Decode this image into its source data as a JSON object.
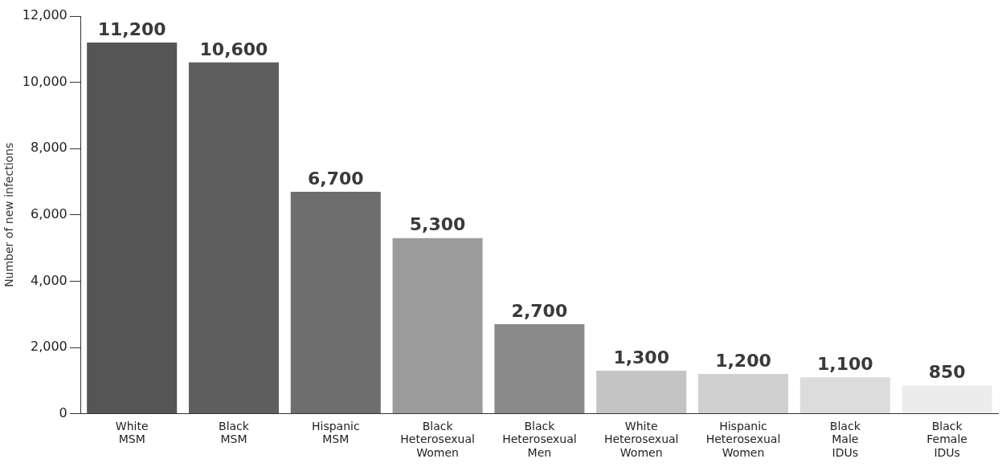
{
  "chart_data": {
    "type": "bar",
    "ylabel": "Number of new infections",
    "categories": [
      "White\nMSM",
      "Black\nMSM",
      "Hispanic\nMSM",
      "Black\nHeterosexual\nWomen",
      "Black\nHeterosexual\nMen",
      "White\nHeterosexual\nWomen",
      "Hispanic\nHeterosexual\nWomen",
      "Black\nMale\nIDUs",
      "Black\nFemale\nIDUs"
    ],
    "values": [
      11200,
      10600,
      6700,
      5300,
      2700,
      1300,
      1200,
      1100,
      850
    ],
    "value_labels": [
      "11,200",
      "10,600",
      "6,700",
      "5,300",
      "2,700",
      "1,300",
      "1,200",
      "1,100",
      "850"
    ],
    "colors": [
      "#555555",
      "#5e5e5e",
      "#6e6e6e",
      "#9c9c9c",
      "#8a8a8a",
      "#c4c4c4",
      "#d0d0d0",
      "#dcdcdc",
      "#ececec"
    ],
    "ylim": [
      0,
      12000
    ],
    "yticks": [
      0,
      {
        "value": 2000,
        "label": "2,000"
      },
      {
        "value": 4000,
        "label": "4,000"
      },
      {
        "value": 6000,
        "label": "6,000"
      },
      {
        "value": 8000,
        "label": "8,000"
      },
      {
        "value": 10000,
        "label": "10,000"
      },
      {
        "value": 12000,
        "label": "12,000"
      }
    ],
    "grid": false
  }
}
